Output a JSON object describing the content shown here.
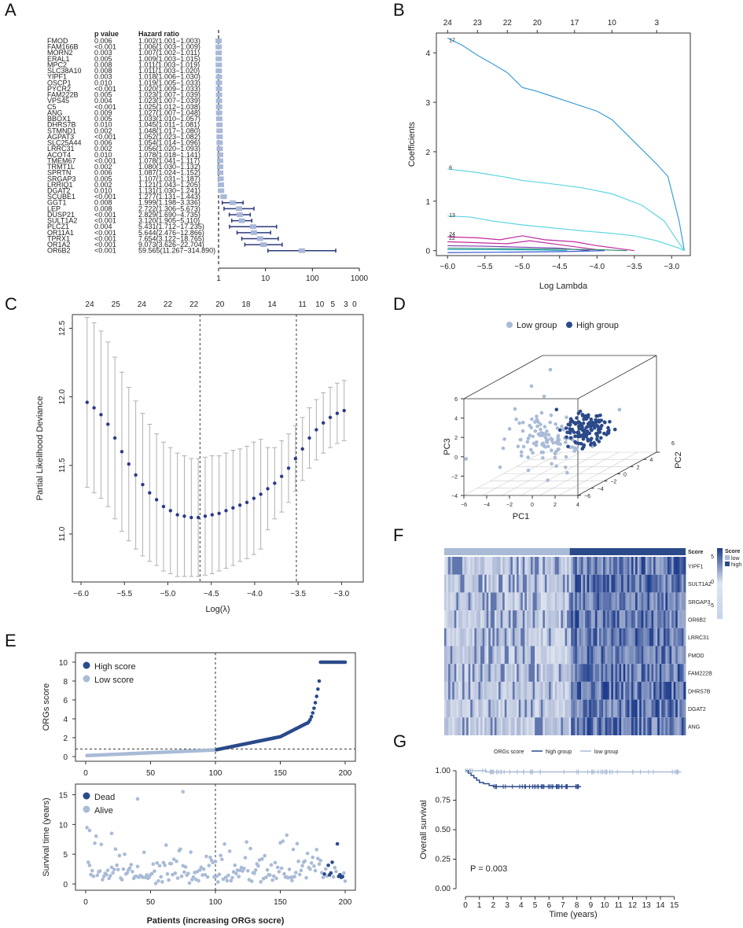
{
  "panels": {
    "A": "A",
    "B": "B",
    "C": "C",
    "D": "D",
    "E": "E",
    "F": "F",
    "G": "G"
  },
  "colors": {
    "dark": "#2b4a8a",
    "light": "#a9bbd6",
    "ci": "#2d3a7a",
    "box": "#a8b8d8",
    "lasso_top": "#3b9fd6",
    "lasso_cyan": "#5fd6e0",
    "lasso_mag": "#c02a9e",
    "grey": "#b0b0b0"
  },
  "chart_data": [
    {
      "panel": "A",
      "type": "forest",
      "header_pvalue": "p value",
      "header_hr": "Hazard ratio",
      "xscale": "log",
      "xticks": [
        1,
        10,
        100,
        1000
      ],
      "xtick_labels": [
        "1",
        "10",
        "100",
        "1000"
      ],
      "rows": [
        {
          "gene": "FMOD",
          "p": "0.006",
          "hr_text": "1.002(1.001−1.003)",
          "hr": 1.002,
          "lo": 1.001,
          "hi": 1.003
        },
        {
          "gene": "FAM166B",
          "p": "<0.001",
          "hr_text": "1.006(1.003−1.009)",
          "hr": 1.006,
          "lo": 1.003,
          "hi": 1.009
        },
        {
          "gene": "MORN2",
          "p": "0.003",
          "hr_text": "1.007(1.002−1.011)",
          "hr": 1.007,
          "lo": 1.002,
          "hi": 1.011
        },
        {
          "gene": "ERAL1",
          "p": "0.005",
          "hr_text": "1.009(1.003−1.015)",
          "hr": 1.009,
          "lo": 1.003,
          "hi": 1.015
        },
        {
          "gene": "MPC2",
          "p": "0.008",
          "hr_text": "1.011(1.003−1.019)",
          "hr": 1.011,
          "lo": 1.003,
          "hi": 1.019
        },
        {
          "gene": "SLC38A10",
          "p": "0.008",
          "hr_text": "1.011(1.003−1.020)",
          "hr": 1.011,
          "lo": 1.003,
          "hi": 1.02
        },
        {
          "gene": "YIPF1",
          "p": "0.003",
          "hr_text": "1.018(1.006−1.030)",
          "hr": 1.018,
          "lo": 1.006,
          "hi": 1.03
        },
        {
          "gene": "OSCP1",
          "p": "0.010",
          "hr_text": "1.019(1.005−1.033)",
          "hr": 1.019,
          "lo": 1.005,
          "hi": 1.033
        },
        {
          "gene": "PYCR2",
          "p": "<0.001",
          "hr_text": "1.020(1.009−1.033)",
          "hr": 1.02,
          "lo": 1.009,
          "hi": 1.033
        },
        {
          "gene": "FAM222B",
          "p": "0.005",
          "hr_text": "1.023(1.007−1.039)",
          "hr": 1.023,
          "lo": 1.007,
          "hi": 1.039
        },
        {
          "gene": "VPS45",
          "p": "0.004",
          "hr_text": "1.023(1.007−1.039)",
          "hr": 1.023,
          "lo": 1.007,
          "hi": 1.039
        },
        {
          "gene": "C5",
          "p": "<0.001",
          "hr_text": "1.025(1.012−1.038)",
          "hr": 1.025,
          "lo": 1.012,
          "hi": 1.038
        },
        {
          "gene": "ANG",
          "p": "0.009",
          "hr_text": "1.027(1.007−1.048)",
          "hr": 1.027,
          "lo": 1.007,
          "hi": 1.048
        },
        {
          "gene": "BBOX1",
          "p": "0.005",
          "hr_text": "1.033(1.010−1.057)",
          "hr": 1.033,
          "lo": 1.01,
          "hi": 1.057
        },
        {
          "gene": "DHRS7B",
          "p": "0.010",
          "hr_text": "1.045(1.011−1.081)",
          "hr": 1.045,
          "lo": 1.011,
          "hi": 1.081
        },
        {
          "gene": "STMND1",
          "p": "0.002",
          "hr_text": "1.048(1.017−1.080)",
          "hr": 1.048,
          "lo": 1.017,
          "hi": 1.08
        },
        {
          "gene": "AGPAT3",
          "p": "<0.001",
          "hr_text": "1.052(1.023−1.082)",
          "hr": 1.052,
          "lo": 1.023,
          "hi": 1.082
        },
        {
          "gene": "SLC25A44",
          "p": "0.006",
          "hr_text": "1.054(1.014−1.096)",
          "hr": 1.054,
          "lo": 1.014,
          "hi": 1.096
        },
        {
          "gene": "LRRC31",
          "p": "0.002",
          "hr_text": "1.056(1.020−1.093)",
          "hr": 1.056,
          "lo": 1.02,
          "hi": 1.093
        },
        {
          "gene": "ACOT4",
          "p": "0.010",
          "hr_text": "1.078(1.018−1.141)",
          "hr": 1.078,
          "lo": 1.018,
          "hi": 1.141
        },
        {
          "gene": "TMEM67",
          "p": "<0.001",
          "hr_text": "1.078(1.041−1.117)",
          "hr": 1.078,
          "lo": 1.041,
          "hi": 1.117
        },
        {
          "gene": "TRMT1L",
          "p": "0.002",
          "hr_text": "1.080(1.030−1.132)",
          "hr": 1.08,
          "lo": 1.03,
          "hi": 1.132
        },
        {
          "gene": "SPRTN",
          "p": "0.006",
          "hr_text": "1.087(1.024−1.152)",
          "hr": 1.087,
          "lo": 1.024,
          "hi": 1.152
        },
        {
          "gene": "SRGAP3",
          "p": "0.005",
          "hr_text": "1.107(1.031−1.187)",
          "hr": 1.107,
          "lo": 1.031,
          "hi": 1.187
        },
        {
          "gene": "LRRIQ1",
          "p": "0.002",
          "hr_text": "1.121(1.043−1.205)",
          "hr": 1.121,
          "lo": 1.043,
          "hi": 1.205
        },
        {
          "gene": "DGAT2",
          "p": "0.010",
          "hr_text": "1.131(1.030−1.241)",
          "hr": 1.131,
          "lo": 1.03,
          "hi": 1.241
        },
        {
          "gene": "SCUBE1",
          "p": "<0.001",
          "hr_text": "1.277(1.131−1.443)",
          "hr": 1.277,
          "lo": 1.131,
          "hi": 1.443
        },
        {
          "gene": "GGT1",
          "p": "0.008",
          "hr_text": "1.999(1.198−3.336)",
          "hr": 1.999,
          "lo": 1.198,
          "hi": 3.336
        },
        {
          "gene": "LEP",
          "p": "0.008",
          "hr_text": "2.722(1.306−5.673)",
          "hr": 2.722,
          "lo": 1.306,
          "hi": 5.673
        },
        {
          "gene": "DUSP21",
          "p": "<0.001",
          "hr_text": "2.829(1.690−4.735)",
          "hr": 2.829,
          "lo": 1.69,
          "hi": 4.735
        },
        {
          "gene": "SULT1A2",
          "p": "<0.001",
          "hr_text": "3.120(1.905−5.110)",
          "hr": 3.12,
          "lo": 1.905,
          "hi": 5.11
        },
        {
          "gene": "PLCZ1",
          "p": "0.004",
          "hr_text": "5.431(1.712−17.235)",
          "hr": 5.431,
          "lo": 1.712,
          "hi": 17.235
        },
        {
          "gene": "OR11A1",
          "p": "<0.001",
          "hr_text": "5.644(2.476−12.866)",
          "hr": 5.644,
          "lo": 2.476,
          "hi": 12.866
        },
        {
          "gene": "TPRX1",
          "p": "<0.001",
          "hr_text": "7.654(3.122−18.765)",
          "hr": 7.654,
          "lo": 3.122,
          "hi": 18.765
        },
        {
          "gene": "OR1A2",
          "p": "<0.001",
          "hr_text": "9.073(3.626−22.704)",
          "hr": 9.073,
          "lo": 3.626,
          "hi": 22.704
        },
        {
          "gene": "OR6B2",
          "p": "<0.001",
          "hr_text": "59.565(11.267−314.890)",
          "hr": 59.565,
          "lo": 11.267,
          "hi": 314.89
        }
      ]
    },
    {
      "panel": "B",
      "type": "line",
      "xlabel": "Log Lambda",
      "ylabel": "Coefficients",
      "xlim": [
        -6.15,
        -2.75
      ],
      "ylim": [
        -0.1,
        4.4
      ],
      "xticks": [
        -6.0,
        -5.5,
        -5.0,
        -4.5,
        -4.0,
        -3.5,
        -3.0
      ],
      "xtick_labels": [
        "−6.0",
        "−5.5",
        "−5.0",
        "−4.5",
        "−4.0",
        "−3.5",
        "−3.0"
      ],
      "yticks": [
        0,
        1,
        2,
        3,
        4
      ],
      "top_ticks": [
        -6.0,
        -5.6,
        -5.2,
        -4.8,
        -4.3,
        -3.8,
        -3.2
      ],
      "top_labels": [
        "24",
        "23",
        "22",
        "20",
        "17",
        "10",
        "3"
      ],
      "curve_labels": [
        {
          "x": -5.98,
          "y": 4.22,
          "t": "17"
        },
        {
          "x": -5.98,
          "y": 1.64,
          "t": "6"
        },
        {
          "x": -5.98,
          "y": 0.68,
          "t": "13"
        },
        {
          "x": -5.98,
          "y": 0.3,
          "t": "24"
        },
        {
          "x": -5.98,
          "y": 0.22,
          "t": "22"
        }
      ],
      "series": [
        {
          "name": "s1",
          "color": "#3b9fd6",
          "x": [
            -6.0,
            -5.8,
            -5.6,
            -5.4,
            -5.2,
            -5.0,
            -4.8,
            -4.6,
            -4.4,
            -4.2,
            -4.0,
            -3.8,
            -3.6,
            -3.4,
            -3.2,
            -3.05,
            -2.9,
            -2.83
          ],
          "y": [
            4.3,
            4.15,
            3.95,
            3.78,
            3.6,
            3.3,
            3.22,
            3.12,
            3.02,
            2.92,
            2.82,
            2.65,
            2.35,
            2.05,
            1.75,
            1.5,
            0.6,
            0.0
          ]
        },
        {
          "name": "s2",
          "color": "#5fd6e0",
          "x": [
            -6.0,
            -5.6,
            -5.2,
            -5.0,
            -4.6,
            -4.2,
            -3.8,
            -3.4,
            -3.1,
            -2.9,
            -2.83
          ],
          "y": [
            1.65,
            1.58,
            1.48,
            1.42,
            1.35,
            1.27,
            1.15,
            0.92,
            0.6,
            0.15,
            0.0
          ]
        },
        {
          "name": "s3",
          "color": "#5fd6e0",
          "x": [
            -6.0,
            -5.7,
            -5.4,
            -5.0,
            -4.6,
            -4.2,
            -3.8,
            -3.5,
            -3.2,
            -2.9,
            -2.83
          ],
          "y": [
            0.7,
            0.68,
            0.6,
            0.52,
            0.46,
            0.4,
            0.35,
            0.3,
            0.2,
            0.05,
            0.0
          ]
        },
        {
          "name": "s4",
          "color": "#c02a9e",
          "x": [
            -6.0,
            -5.6,
            -5.3,
            -5.0,
            -4.7,
            -4.3,
            -4.0,
            -3.7,
            -3.5
          ],
          "y": [
            0.28,
            0.26,
            0.22,
            0.3,
            0.22,
            0.18,
            0.1,
            0.04,
            0.0
          ]
        },
        {
          "name": "s5",
          "color": "#c02a9e",
          "x": [
            -6.0,
            -5.6,
            -5.2,
            -4.9,
            -4.5,
            -4.2,
            -3.9
          ],
          "y": [
            0.18,
            0.16,
            0.14,
            0.2,
            0.12,
            0.06,
            0.0
          ]
        },
        {
          "name": "s6",
          "color": "#7a3ab0",
          "x": [
            -6.0,
            -5.5,
            -5.0,
            -4.5,
            -4.1
          ],
          "y": [
            0.1,
            0.09,
            0.07,
            0.05,
            0.0
          ]
        },
        {
          "name": "s7",
          "color": "#2a8a6a",
          "x": [
            -6.0,
            -5.3,
            -4.6,
            -4.0,
            -3.6
          ],
          "y": [
            0.05,
            0.04,
            0.03,
            0.02,
            0.0
          ]
        },
        {
          "name": "s8",
          "color": "#3a5ad0",
          "x": [
            -6.0,
            -5.2,
            -4.5,
            -3.9
          ],
          "y": [
            -0.04,
            -0.03,
            -0.02,
            0.0
          ]
        },
        {
          "name": "s9",
          "color": "#2ab0c0",
          "x": [
            -6.0,
            -5.4,
            -4.8,
            -4.4
          ],
          "y": [
            0.02,
            0.02,
            0.015,
            0.0
          ]
        }
      ]
    },
    {
      "panel": "C",
      "type": "scatter",
      "xlabel": "Log(λ)",
      "ylabel": "Partial Likelihood Deviance",
      "xlim": [
        -6.1,
        -2.75
      ],
      "ylim": [
        10.65,
        12.6
      ],
      "xticks": [
        -6.0,
        -5.5,
        -5.0,
        -4.5,
        -4.0,
        -3.5,
        -3.0
      ],
      "xtick_labels": [
        "−6.0",
        "−5.5",
        "−5.0",
        "−4.5",
        "−4.0",
        "−3.5",
        "−3.0"
      ],
      "yticks": [
        11.0,
        11.5,
        12.0,
        12.5
      ],
      "ytick_labels": [
        "11.0",
        "11.5",
        "12.0",
        "12.5"
      ],
      "vlines": [
        -4.63,
        -3.52
      ],
      "top_ticks": [
        -5.9,
        -5.6,
        -5.3,
        -5.0,
        -4.7,
        -4.4,
        -4.1,
        -3.8,
        -3.45,
        -3.25,
        -3.1,
        -2.95
      ],
      "top_labels": [
        "24",
        "25",
        "24",
        "22",
        "22",
        "20",
        "18",
        "14",
        "11",
        "10",
        "5",
        "3"
      ],
      "top_label_last": "0",
      "x": [
        -5.93,
        -5.85,
        -5.77,
        -5.69,
        -5.61,
        -5.53,
        -5.45,
        -5.37,
        -5.29,
        -5.21,
        -5.13,
        -5.05,
        -4.97,
        -4.89,
        -4.81,
        -4.73,
        -4.65,
        -4.57,
        -4.49,
        -4.41,
        -4.33,
        -4.25,
        -4.17,
        -4.09,
        -4.01,
        -3.93,
        -3.85,
        -3.77,
        -3.69,
        -3.61,
        -3.53,
        -3.45,
        -3.37,
        -3.29,
        -3.21,
        -3.13,
        -3.05,
        -2.97
      ],
      "y": [
        11.96,
        11.92,
        11.87,
        11.8,
        11.7,
        11.6,
        11.51,
        11.43,
        11.36,
        11.3,
        11.25,
        11.2,
        11.17,
        11.14,
        11.13,
        11.12,
        11.12,
        11.13,
        11.14,
        11.15,
        11.17,
        11.19,
        11.21,
        11.23,
        11.26,
        11.29,
        11.33,
        11.37,
        11.42,
        11.48,
        11.55,
        11.62,
        11.7,
        11.76,
        11.81,
        11.85,
        11.88,
        11.9
      ],
      "err": [
        0.62,
        0.62,
        0.61,
        0.6,
        0.59,
        0.58,
        0.56,
        0.54,
        0.52,
        0.5,
        0.48,
        0.47,
        0.46,
        0.45,
        0.44,
        0.43,
        0.43,
        0.43,
        0.43,
        0.42,
        0.42,
        0.42,
        0.41,
        0.41,
        0.41,
        0.4,
        0.3,
        0.26,
        0.26,
        0.25,
        0.24,
        0.23,
        0.22,
        0.22,
        0.22,
        0.22,
        0.22,
        0.22
      ]
    },
    {
      "panel": "D",
      "type": "scatter3d",
      "legend": [
        {
          "label": "Low group",
          "color": "#a9bbd6"
        },
        {
          "label": "High group",
          "color": "#2b4a8a"
        }
      ],
      "xlabel": "PC1",
      "ylabel": "PC2",
      "zlabel": "PC3",
      "pc1_ticks": [
        -6,
        -4,
        -2,
        0,
        2,
        4
      ],
      "pc2_ticks": [
        -6,
        -4,
        -2,
        0,
        2,
        4,
        6
      ],
      "pc3_ticks": [
        -4,
        -2,
        0,
        2,
        4,
        6
      ]
    },
    {
      "panel": "E",
      "type": "scatter",
      "top_ylabel": "ORGs score",
      "bottom_ylabel": "Survival time (years)",
      "xlabel": "Patients (increasing ORGs socre)",
      "xticks": [
        0,
        50,
        100,
        150,
        200
      ],
      "top_yticks": [
        0,
        2,
        4,
        6,
        8,
        10
      ],
      "bottom_yticks": [
        0,
        5,
        10,
        15
      ],
      "cutoff_x": 100,
      "cutoff_y": 0.8,
      "top_legend": [
        {
          "label": "High score",
          "color": "#2b4a8a"
        },
        {
          "label": "Low score",
          "color": "#a9bbd6"
        }
      ],
      "bottom_legend": [
        {
          "label": "Dead",
          "color": "#2b4a8a"
        },
        {
          "label": "Alive",
          "color": "#a9bbd6"
        }
      ],
      "n": 200
    },
    {
      "panel": "F",
      "type": "heatmap",
      "genes": [
        "YIPF1",
        "SULT1A2",
        "SRGAP3",
        "OR6B2",
        "LRRC31",
        "FMOD",
        "FAM222B",
        "DHRS7B",
        "DGAT2",
        "ANG"
      ],
      "score_label": "Score",
      "legend_title": "Score",
      "legend_low": "low",
      "legend_high": "high",
      "scale_ticks": [
        "5",
        "0",
        "−5"
      ]
    },
    {
      "panel": "G",
      "type": "line",
      "title": "ORGs score",
      "legend": [
        {
          "label": "high group",
          "color": "#2b4a8a"
        },
        {
          "label": "low group",
          "color": "#a9bbd6"
        }
      ],
      "xlabel": "Time (years)",
      "ylabel": "Overall survival",
      "pvalue": "P = 0.003",
      "xticks": [
        0,
        1,
        2,
        3,
        4,
        5,
        6,
        7,
        8,
        9,
        10,
        11,
        12,
        13,
        14,
        15
      ],
      "yticks": [
        0.0,
        0.25,
        0.5,
        0.75,
        1.0
      ],
      "ytick_labels": [
        "0.00",
        "0.25",
        "0.50",
        "0.75",
        "1.00"
      ],
      "high_group": {
        "x": [
          0,
          0.2,
          0.4,
          0.6,
          0.8,
          1.0,
          1.3,
          1.7,
          2.0,
          8.3
        ],
        "y": [
          1.0,
          0.98,
          0.96,
          0.94,
          0.92,
          0.9,
          0.89,
          0.875,
          0.865,
          0.865
        ]
      },
      "low_group": {
        "x": [
          0,
          1.5,
          15.5
        ],
        "y": [
          1.0,
          0.99,
          0.99
        ]
      }
    }
  ]
}
